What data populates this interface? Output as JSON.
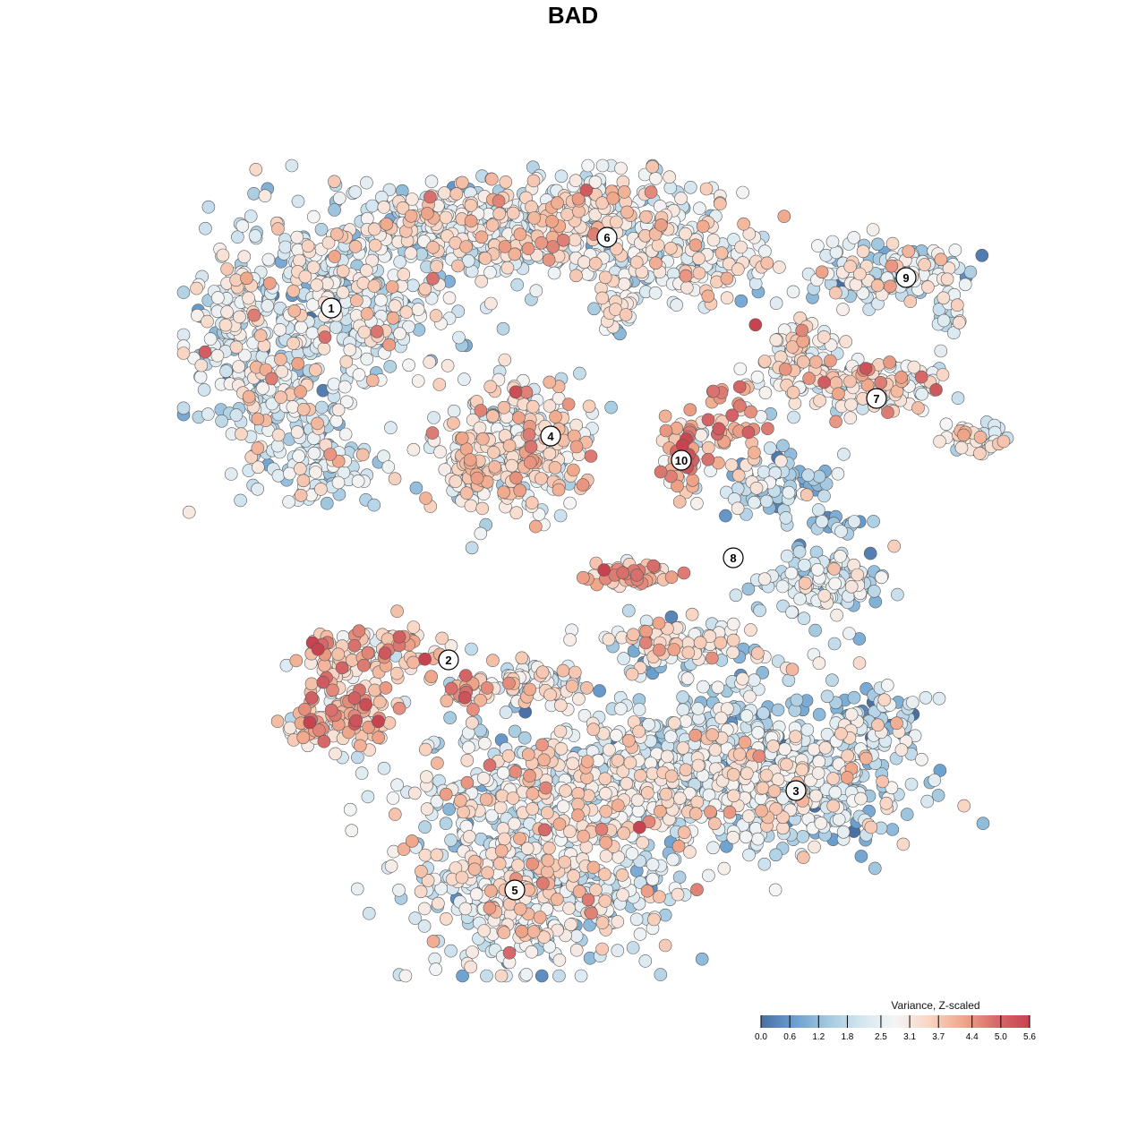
{
  "title": "BAD",
  "chart_data": {
    "type": "scatter",
    "title": "BAD",
    "xlabel": "",
    "ylabel": "",
    "grid": false,
    "point_count_approx": 7000,
    "color_legend": {
      "title": "Variance, Z-scaled",
      "ticks": [
        "0.0",
        "0.6",
        "1.2",
        "1.8",
        "2.5",
        "3.1",
        "3.7",
        "4.4",
        "5.0",
        "5.6"
      ],
      "range": [
        0.0,
        5.6
      ],
      "colors": [
        "#4a6fa5",
        "#6a9fcf",
        "#a3c9e0",
        "#d4e6f0",
        "#f5f5f5",
        "#f9d5c3",
        "#f0a88b",
        "#d66a6a",
        "#c7434f"
      ],
      "placement": "bottom-right"
    },
    "clusters": [
      {
        "label": "1",
        "typical_value": 2.3
      },
      {
        "label": "2",
        "typical_value": 3.6
      },
      {
        "label": "3",
        "typical_value": 2.0
      },
      {
        "label": "4",
        "typical_value": 3.0
      },
      {
        "label": "5",
        "typical_value": 2.6
      },
      {
        "label": "6",
        "typical_value": 2.6
      },
      {
        "label": "7",
        "typical_value": 2.9
      },
      {
        "label": "8",
        "typical_value": 1.8
      },
      {
        "label": "9",
        "typical_value": 2.2
      },
      {
        "label": "10",
        "typical_value": 3.9
      }
    ]
  }
}
